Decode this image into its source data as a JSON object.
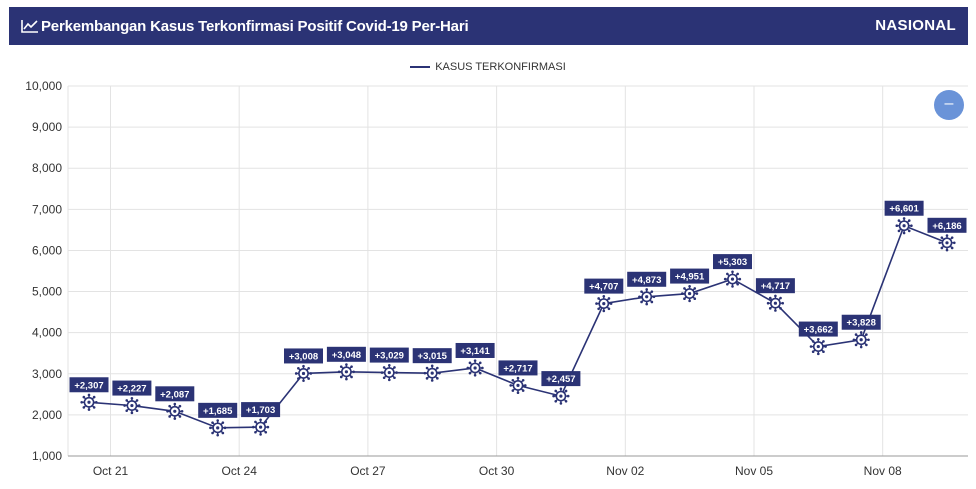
{
  "header": {
    "title": "Perkembangan Kasus Terkonfirmasi Positif Covid-19 Per-Hari",
    "scope": "NASIONAL",
    "bg_color": "#2b3375"
  },
  "zoom_button": {
    "label": "–",
    "color": "#6a93d8"
  },
  "chart_data": {
    "type": "line",
    "title": "Perkembangan Kasus Terkonfirmasi Positif Covid-19 Per-Hari",
    "xlabel": "",
    "ylabel": "",
    "ylim": [
      1000,
      10000
    ],
    "yticks": [
      "1,000",
      "2,000",
      "3,000",
      "4,000",
      "5,000",
      "6,000",
      "7,000",
      "8,000",
      "9,000",
      "10,000"
    ],
    "xticks": [
      "Oct 21",
      "Oct 24",
      "Oct 27",
      "Oct 30",
      "Nov 02",
      "Nov 05",
      "Nov 08"
    ],
    "grid": true,
    "legend_position": "top-center",
    "marker": "virus-icon",
    "line_color": "#2b3375",
    "series": [
      {
        "name": "KASUS TERKONFIRMASI",
        "x": [
          "Oct 21",
          "Oct 22",
          "Oct 23",
          "Oct 24",
          "Oct 25",
          "Oct 26",
          "Oct 27",
          "Oct 28",
          "Oct 29",
          "Oct 30",
          "Oct 31",
          "Nov 01",
          "Nov 02",
          "Nov 03",
          "Nov 04",
          "Nov 05",
          "Nov 06",
          "Nov 07",
          "Nov 08",
          "Nov 09",
          "Nov 10"
        ],
        "values": [
          2307,
          2227,
          2087,
          1685,
          1703,
          3008,
          3048,
          3029,
          3015,
          3141,
          2717,
          2457,
          4707,
          4873,
          4951,
          5303,
          4717,
          3662,
          3828,
          6601,
          6186
        ],
        "labels": [
          "+2,307",
          "+2,227",
          "+2,087",
          "+1,685",
          "+1,703",
          "+3,008",
          "+3,048",
          "+3,029",
          "+3,015",
          "+3,141",
          "+2,717",
          "+2,457",
          "+4,707",
          "+4,873",
          "+4,951",
          "+5,303",
          "+4,717",
          "+3,662",
          "+3,828",
          "+6,601",
          "+6,186"
        ]
      }
    ]
  }
}
